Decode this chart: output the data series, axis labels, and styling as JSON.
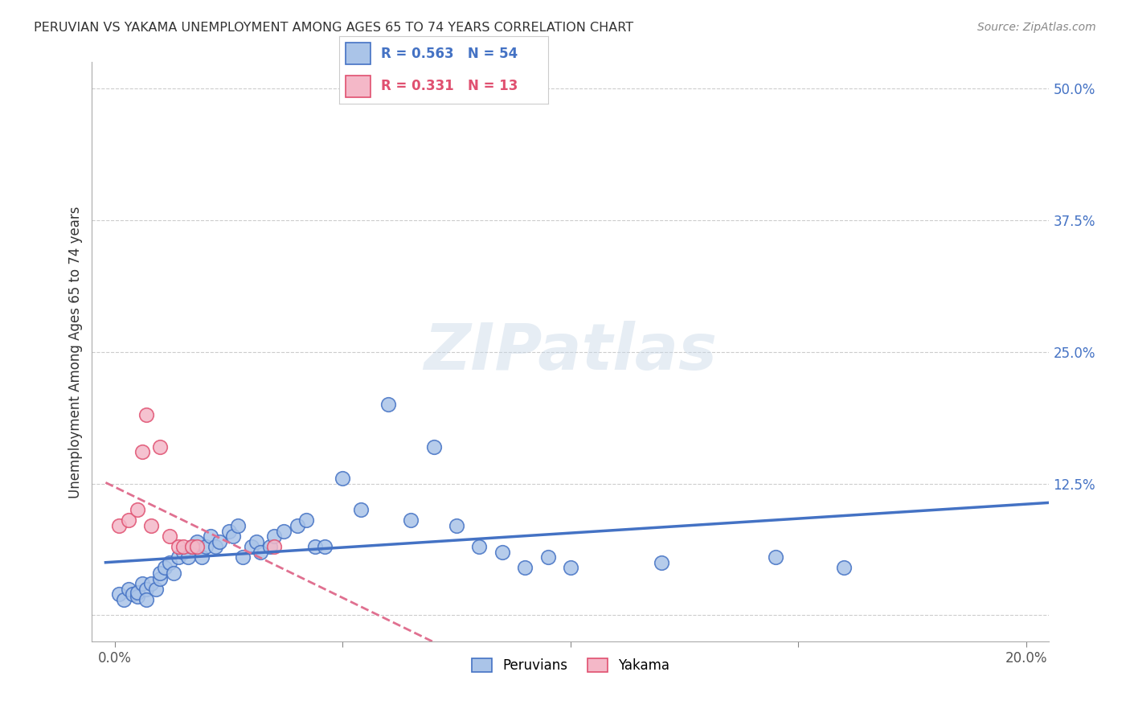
{
  "title": "PERUVIAN VS YAKAMA UNEMPLOYMENT AMONG AGES 65 TO 74 YEARS CORRELATION CHART",
  "source": "Source: ZipAtlas.com",
  "ylabel": "Unemployment Among Ages 65 to 74 years",
  "blue_R": 0.563,
  "blue_N": 54,
  "pink_R": 0.331,
  "pink_N": 13,
  "blue_color": "#aac4e8",
  "pink_color": "#f4b8c8",
  "blue_edge_color": "#4472c4",
  "pink_edge_color": "#e05070",
  "blue_line_color": "#4472c4",
  "pink_line_color": "#e07090",
  "legend_blue_label": "Peruvians",
  "legend_pink_label": "Yakama",
  "watermark": "ZIPatlas",
  "blue_x": [
    0.001,
    0.002,
    0.003,
    0.004,
    0.005,
    0.005,
    0.006,
    0.007,
    0.007,
    0.008,
    0.009,
    0.01,
    0.01,
    0.011,
    0.012,
    0.013,
    0.014,
    0.015,
    0.016,
    0.017,
    0.018,
    0.019,
    0.02,
    0.021,
    0.022,
    0.023,
    0.025,
    0.026,
    0.027,
    0.028,
    0.03,
    0.031,
    0.032,
    0.034,
    0.035,
    0.037,
    0.04,
    0.042,
    0.044,
    0.046,
    0.05,
    0.054,
    0.06,
    0.065,
    0.07,
    0.075,
    0.08,
    0.085,
    0.09,
    0.095,
    0.1,
    0.12,
    0.145,
    0.16
  ],
  "blue_y": [
    0.02,
    0.015,
    0.025,
    0.02,
    0.018,
    0.022,
    0.03,
    0.025,
    0.015,
    0.03,
    0.025,
    0.035,
    0.04,
    0.045,
    0.05,
    0.04,
    0.055,
    0.06,
    0.055,
    0.065,
    0.07,
    0.055,
    0.065,
    0.075,
    0.065,
    0.07,
    0.08,
    0.075,
    0.085,
    0.055,
    0.065,
    0.07,
    0.06,
    0.065,
    0.075,
    0.08,
    0.085,
    0.09,
    0.065,
    0.065,
    0.13,
    0.1,
    0.2,
    0.09,
    0.16,
    0.085,
    0.065,
    0.06,
    0.045,
    0.055,
    0.045,
    0.05,
    0.055,
    0.045
  ],
  "pink_x": [
    0.001,
    0.003,
    0.005,
    0.006,
    0.007,
    0.008,
    0.01,
    0.012,
    0.014,
    0.015,
    0.017,
    0.018,
    0.035
  ],
  "pink_y": [
    0.085,
    0.09,
    0.1,
    0.155,
    0.19,
    0.085,
    0.16,
    0.075,
    0.065,
    0.065,
    0.065,
    0.065,
    0.065
  ]
}
